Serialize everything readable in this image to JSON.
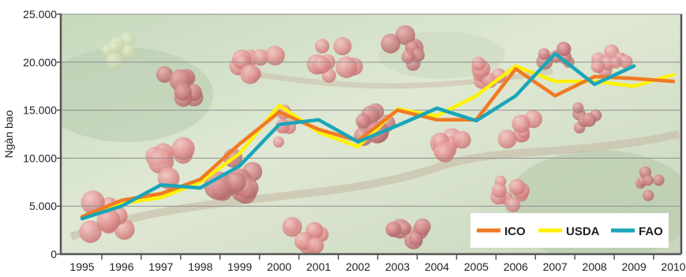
{
  "chart_data": {
    "type": "line",
    "title": "",
    "xlabel": "",
    "ylabel": "Ngàn bao",
    "ylim": [
      0,
      25000
    ],
    "yticks": [
      0,
      5000,
      10000,
      15000,
      20000,
      25000
    ],
    "ytick_labels": [
      "0",
      "5.000",
      "10.000",
      "15.000",
      "20.000",
      "25.000"
    ],
    "x": [
      "1995",
      "1996",
      "1997",
      "1998",
      "1999",
      "2000",
      "2001",
      "2002",
      "2003",
      "2004",
      "2005",
      "2006",
      "2007",
      "2008",
      "2009",
      "2010"
    ],
    "grid": true,
    "legend_position": "bottom-right",
    "background": "coffee cherries photo",
    "series": [
      {
        "name": "ICO",
        "color": "#F07A22",
        "values": [
          3900,
          5600,
          6300,
          7800,
          11500,
          14800,
          13000,
          11800,
          15000,
          14000,
          14000,
          19300,
          16500,
          18500,
          18300,
          18000
        ]
      },
      {
        "name": "USDA",
        "color": "#FFF200",
        "values": [
          3900,
          5300,
          5900,
          7500,
          10500,
          15500,
          12700,
          11200,
          15100,
          14400,
          16500,
          19600,
          18000,
          18000,
          17500,
          18700
        ]
      },
      {
        "name": "FAO",
        "color": "#1AA5B9",
        "values": [
          3700,
          5000,
          7200,
          6900,
          9200,
          13500,
          14000,
          11700,
          13400,
          15200,
          13900,
          16500,
          20900,
          17700,
          19600,
          null
        ]
      }
    ]
  }
}
